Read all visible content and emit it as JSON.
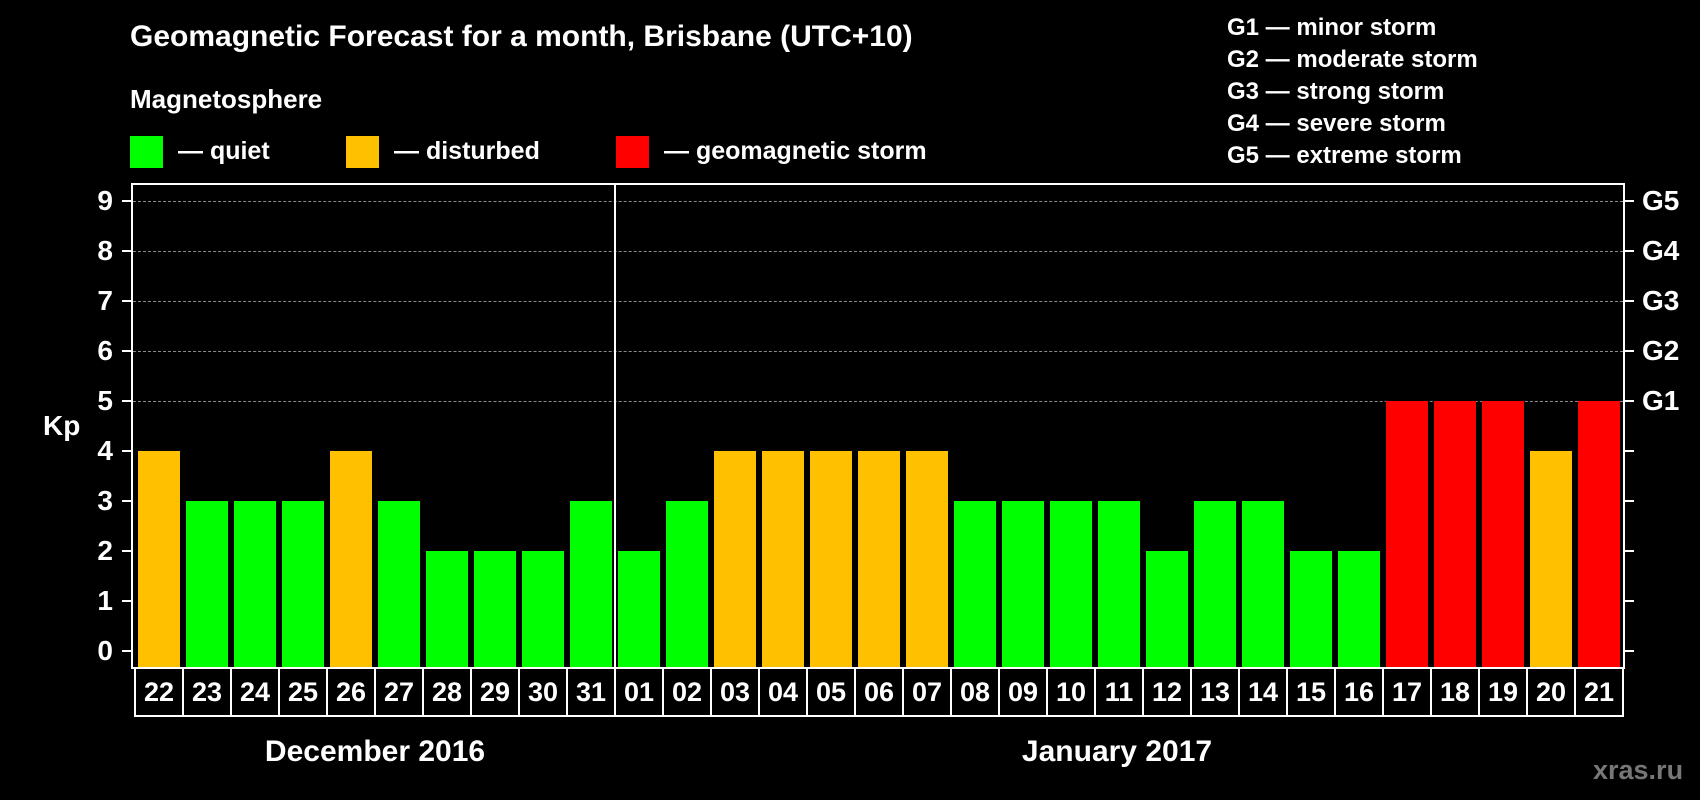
{
  "title": "Geomagnetic Forecast for a month, Brisbane (UTC+10)",
  "subtitle": "Magnetosphere",
  "legend": [
    {
      "label": "— quiet",
      "color": "#00ff00"
    },
    {
      "label": "— disturbed",
      "color": "#ffc000"
    },
    {
      "label": "— geomagnetic storm",
      "color": "#ff0000"
    }
  ],
  "g_legend": [
    "G1 — minor storm",
    "G2 — moderate storm",
    "G3 — strong storm",
    "G4 — severe storm",
    "G5 — extreme storm"
  ],
  "y_axis_label": "Kp",
  "watermark": "xras.ru",
  "colors": {
    "quiet": "#00ff00",
    "disturbed": "#ffc000",
    "storm": "#ff0000",
    "background": "#000000",
    "grid": "#8a8a8a"
  },
  "chart_data": {
    "type": "bar",
    "title": "Geomagnetic Forecast for a month, Brisbane (UTC+10)",
    "xlabel": "",
    "ylabel": "Kp",
    "ylim": [
      0,
      9
    ],
    "yticks": [
      0,
      1,
      2,
      3,
      4,
      5,
      6,
      7,
      8,
      9
    ],
    "right_axis_labels": [
      {
        "value": 5,
        "label": "G1"
      },
      {
        "value": 6,
        "label": "G2"
      },
      {
        "value": 7,
        "label": "G3"
      },
      {
        "value": 8,
        "label": "G4"
      },
      {
        "value": 9,
        "label": "G5"
      }
    ],
    "grid": "horizontal dashed at Kp 5-9",
    "legend_position": "top",
    "months": [
      {
        "label": "December 2016",
        "days": [
          "22",
          "23",
          "24",
          "25",
          "26",
          "27",
          "28",
          "29",
          "30",
          "31"
        ]
      },
      {
        "label": "January 2017",
        "days": [
          "01",
          "02",
          "03",
          "04",
          "05",
          "06",
          "07",
          "08",
          "09",
          "10",
          "11",
          "12",
          "13",
          "14",
          "15",
          "16",
          "17",
          "18",
          "19",
          "20",
          "21"
        ]
      }
    ],
    "categories": [
      "22",
      "23",
      "24",
      "25",
      "26",
      "27",
      "28",
      "29",
      "30",
      "31",
      "01",
      "02",
      "03",
      "04",
      "05",
      "06",
      "07",
      "08",
      "09",
      "10",
      "11",
      "12",
      "13",
      "14",
      "15",
      "16",
      "17",
      "18",
      "19",
      "20",
      "21"
    ],
    "values": [
      4,
      3,
      3,
      3,
      4,
      3,
      2,
      2,
      2,
      3,
      2,
      3,
      4,
      4,
      4,
      4,
      4,
      3,
      3,
      3,
      3,
      2,
      3,
      3,
      2,
      2,
      5,
      5,
      5,
      4,
      5
    ],
    "status": [
      "disturbed",
      "quiet",
      "quiet",
      "quiet",
      "disturbed",
      "quiet",
      "quiet",
      "quiet",
      "quiet",
      "quiet",
      "quiet",
      "quiet",
      "disturbed",
      "disturbed",
      "disturbed",
      "disturbed",
      "disturbed",
      "quiet",
      "quiet",
      "quiet",
      "quiet",
      "quiet",
      "quiet",
      "quiet",
      "quiet",
      "quiet",
      "storm",
      "storm",
      "storm",
      "disturbed",
      "storm"
    ]
  }
}
